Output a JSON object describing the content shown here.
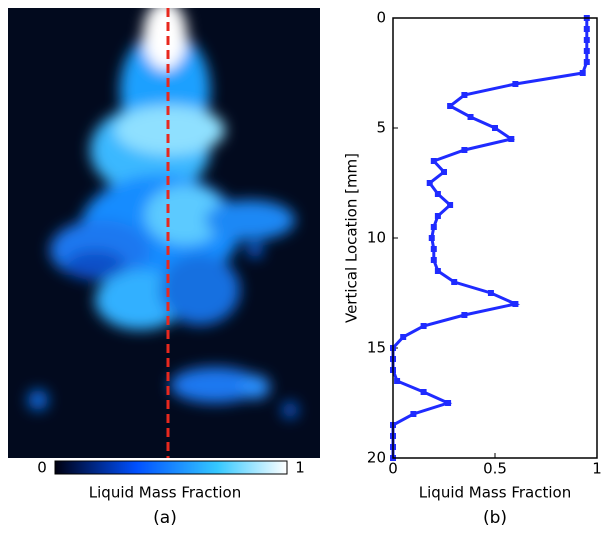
{
  "chart_data": [
    {
      "type": "image",
      "panel_label": "(a)",
      "colorbar": {
        "ticks": [
          0,
          1
        ],
        "label": "Liquid Mass Fraction"
      }
    },
    {
      "type": "line",
      "panel_label": "(b)",
      "xlabel": "Liquid Mass Fraction",
      "ylabel": "Vertical Location [mm]",
      "xlim": [
        0,
        1
      ],
      "xticks": [
        0,
        0.5,
        1
      ],
      "ylim": [
        20,
        0
      ],
      "yticks": [
        0,
        5,
        10,
        15,
        20
      ],
      "series": [
        {
          "color": "#1f2bff",
          "y": [
            0,
            0.5,
            1,
            1.5,
            2,
            2.5,
            3,
            3.5,
            4,
            4.5,
            5,
            5.5,
            6,
            6.5,
            7,
            7.5,
            8,
            8.5,
            9,
            9.5,
            10,
            10.5,
            11,
            11.5,
            12,
            12.5,
            13,
            13.5,
            14,
            14.5,
            15,
            15.5,
            16,
            16.5,
            17,
            17.5,
            18,
            18.5,
            19,
            19.5,
            20
          ],
          "values": [
            0.95,
            0.95,
            0.95,
            0.95,
            0.95,
            0.93,
            0.6,
            0.35,
            0.28,
            0.38,
            0.5,
            0.58,
            0.35,
            0.2,
            0.25,
            0.18,
            0.22,
            0.28,
            0.22,
            0.2,
            0.19,
            0.2,
            0.2,
            0.22,
            0.3,
            0.48,
            0.6,
            0.35,
            0.15,
            0.05,
            0,
            0,
            0,
            0.02,
            0.15,
            0.27,
            0.1,
            0,
            0,
            0,
            0
          ]
        }
      ]
    }
  ]
}
